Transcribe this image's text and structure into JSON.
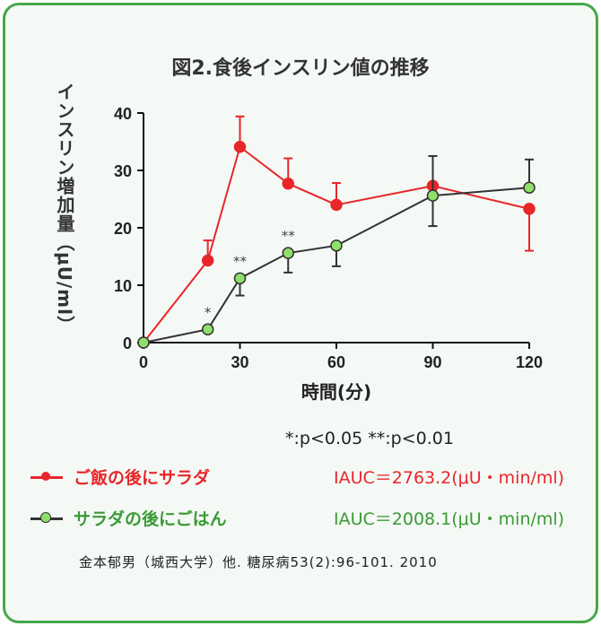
{
  "chart_data": {
    "type": "line",
    "title": "図2.食後インスリン値の推移",
    "xlabel": "時間(分)",
    "ylabel": "インスリン増加量（μU/ml）",
    "xlim": [
      0,
      120
    ],
    "ylim": [
      0,
      40
    ],
    "xticks": [
      "0",
      "30",
      "60",
      "90",
      "120"
    ],
    "yticks": [
      "0",
      "10",
      "20",
      "30",
      "40"
    ],
    "x": [
      0,
      20,
      30,
      45,
      60,
      90,
      120
    ],
    "series": [
      {
        "name": "ご飯の後にサラダ",
        "color": "#e8262a",
        "marker_fill": "#e8262a",
        "values": [
          0,
          14.3,
          34.1,
          27.7,
          24.0,
          27.3,
          23.3
        ],
        "err_up": [
          0,
          3.5,
          5.3,
          4.4,
          3.8,
          0,
          0
        ],
        "err_down": [
          0,
          0,
          0,
          0,
          0,
          0,
          7.3
        ],
        "iauc": "IAUC＝2763.2(μU・min/ml)"
      },
      {
        "name": "サラダの後にごはん",
        "color": "#333333",
        "marker_fill": "#8fe06a",
        "values": [
          0,
          2.3,
          11.2,
          15.6,
          16.9,
          25.6,
          27.0
        ],
        "err_up": [
          0,
          0,
          0,
          0,
          0,
          6.9,
          4.9
        ],
        "err_down": [
          0,
          0,
          3.0,
          3.4,
          3.6,
          5.3,
          0
        ],
        "iauc": "IAUC＝2008.1(μU・min/ml)"
      }
    ],
    "annotations": [
      {
        "x": 20,
        "text": "*"
      },
      {
        "x": 30,
        "text": "**"
      },
      {
        "x": 45,
        "text": "**"
      }
    ],
    "significance": "*:p<0.05 **:p<0.01",
    "legend": "bottom",
    "grid": false
  },
  "citation": "金本郁男（城西大学）他. 糖尿病53(2):96-101. 2010",
  "colors": {
    "red_text": "#e8262a",
    "green_text": "#3a9a34",
    "border": "#46a846"
  }
}
